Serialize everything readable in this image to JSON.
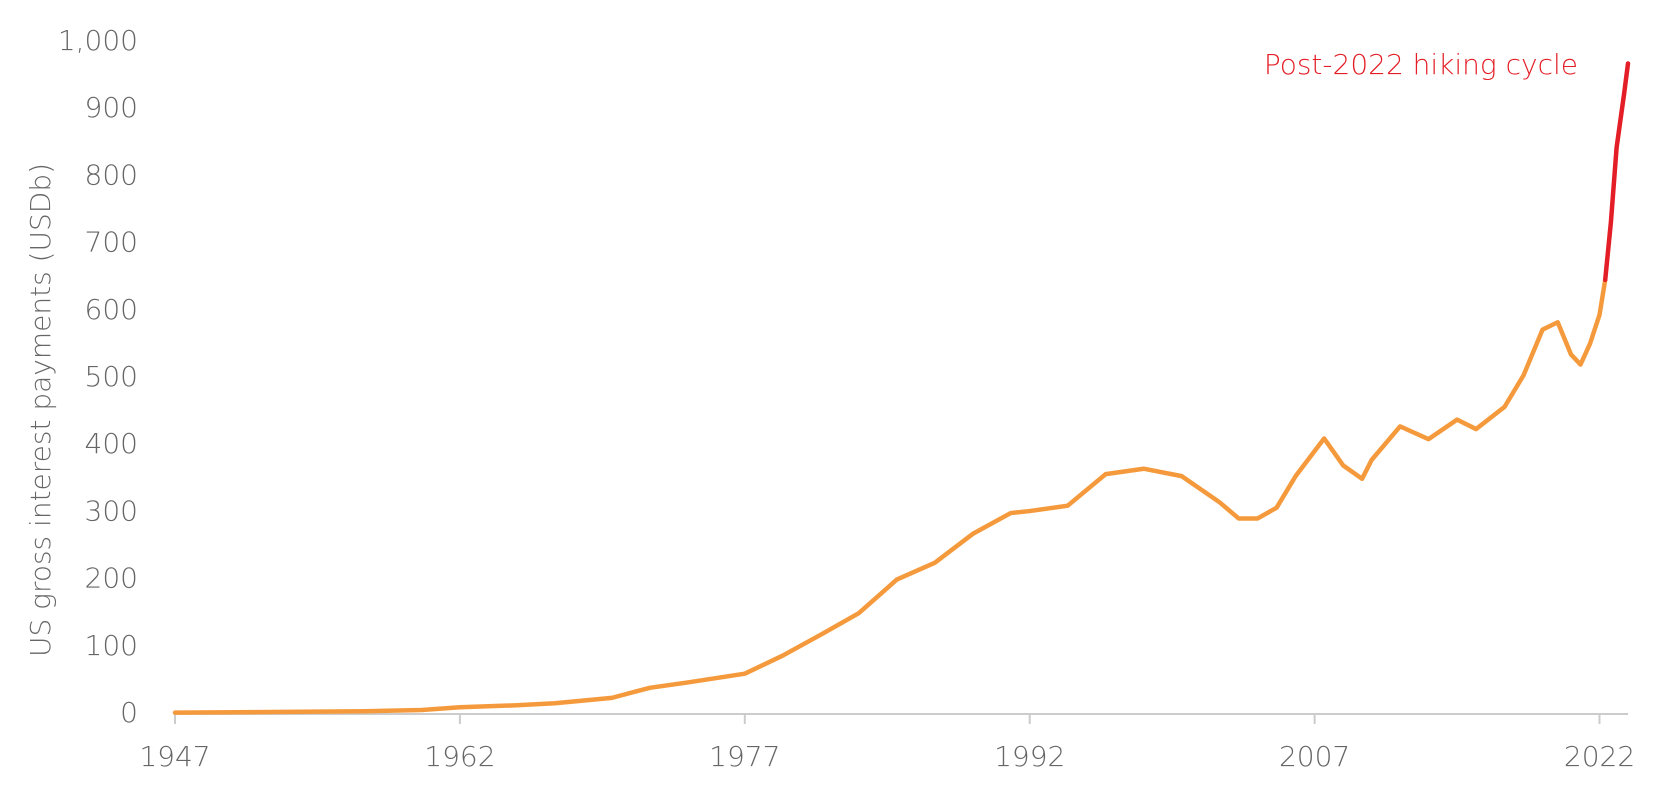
{
  "chart_data": {
    "type": "line",
    "y_label": "US gross interest payments (USDb)",
    "annotation": "Post-2022 hiking cycle",
    "annotation_color": "#e41e26",
    "xlim": [
      1947,
      2023.5
    ],
    "xticks": [
      1947,
      1962,
      1977,
      1992,
      2007,
      2022
    ],
    "ylim": [
      0,
      1000
    ],
    "yticks": [
      0,
      100,
      200,
      300,
      400,
      500,
      600,
      700,
      800,
      900,
      {
        "value": 1000,
        "label": "1,000"
      }
    ],
    "grid": false,
    "series": [
      {
        "color": "#f59a3c",
        "x": [
          1947,
          1952,
          1957,
          1960,
          1962,
          1965,
          1967,
          1970,
          1972,
          1974,
          1977,
          1979,
          1981,
          1983,
          1985,
          1987,
          1989,
          1991,
          1992,
          1994,
          1996,
          1998,
          2000,
          2002,
          2003,
          2004,
          2005,
          2006,
          2007.5,
          2008.5,
          2009.5,
          2010,
          2011.5,
          2013,
          2014.5,
          2015.5,
          2017,
          2018,
          2019,
          2019.8,
          2020.5,
          2021,
          2021.5,
          2022,
          2022.3
        ],
        "values": [
          2,
          3,
          4,
          6,
          10,
          13,
          16,
          24,
          39,
          47,
          60,
          87,
          118,
          150,
          200,
          225,
          268,
          299,
          302,
          310,
          357,
          365,
          354,
          315,
          291,
          291,
          307,
          354,
          410,
          370,
          350,
          378,
          428,
          409,
          438,
          424,
          457,
          504,
          572,
          583,
          535,
          520,
          551,
          594,
          646
        ]
      },
      {
        "color": "#e41e26",
        "x": [
          2022.3,
          2022.6,
          2022.9,
          2023.3,
          2023.5
        ],
        "values": [
          646,
          732,
          843,
          924,
          968
        ]
      }
    ]
  }
}
